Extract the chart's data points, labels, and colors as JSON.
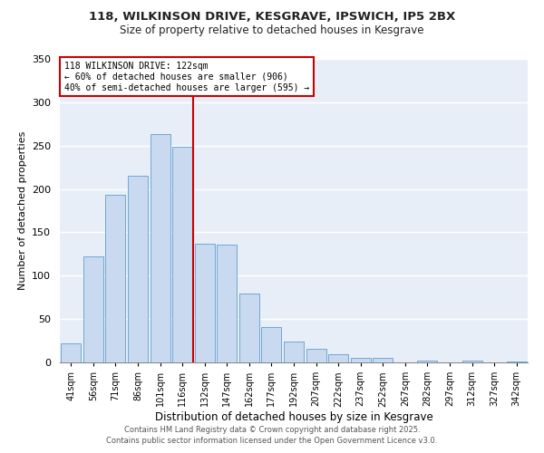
{
  "title1": "118, WILKINSON DRIVE, KESGRAVE, IPSWICH, IP5 2BX",
  "title2": "Size of property relative to detached houses in Kesgrave",
  "xlabel": "Distribution of detached houses by size in Kesgrave",
  "ylabel": "Number of detached properties",
  "bar_labels": [
    "41sqm",
    "56sqm",
    "71sqm",
    "86sqm",
    "101sqm",
    "116sqm",
    "132sqm",
    "147sqm",
    "162sqm",
    "177sqm",
    "192sqm",
    "207sqm",
    "222sqm",
    "237sqm",
    "252sqm",
    "267sqm",
    "282sqm",
    "297sqm",
    "312sqm",
    "327sqm",
    "342sqm"
  ],
  "bar_heights": [
    22,
    122,
    193,
    215,
    263,
    249,
    137,
    136,
    79,
    41,
    24,
    16,
    9,
    5,
    5,
    0,
    2,
    0,
    2,
    0,
    1
  ],
  "bar_color": "#c8d9f0",
  "bar_edge_color": "#6fa8d4",
  "vline_x": 5.5,
  "vline_color": "#cc0000",
  "annotation_line1": "118 WILKINSON DRIVE: 122sqm",
  "annotation_line2": "← 60% of detached houses are smaller (906)",
  "annotation_line3": "40% of semi-detached houses are larger (595) →",
  "annotation_box_color": "#ffffff",
  "annotation_box_edge": "#cc0000",
  "ylim": [
    0,
    350
  ],
  "yticks": [
    0,
    50,
    100,
    150,
    200,
    250,
    300,
    350
  ],
  "grid_color": "#ffffff",
  "bg_color": "#e8eef8",
  "fig_bg_color": "#ffffff",
  "footer1": "Contains HM Land Registry data © Crown copyright and database right 2025.",
  "footer2": "Contains public sector information licensed under the Open Government Licence v3.0."
}
